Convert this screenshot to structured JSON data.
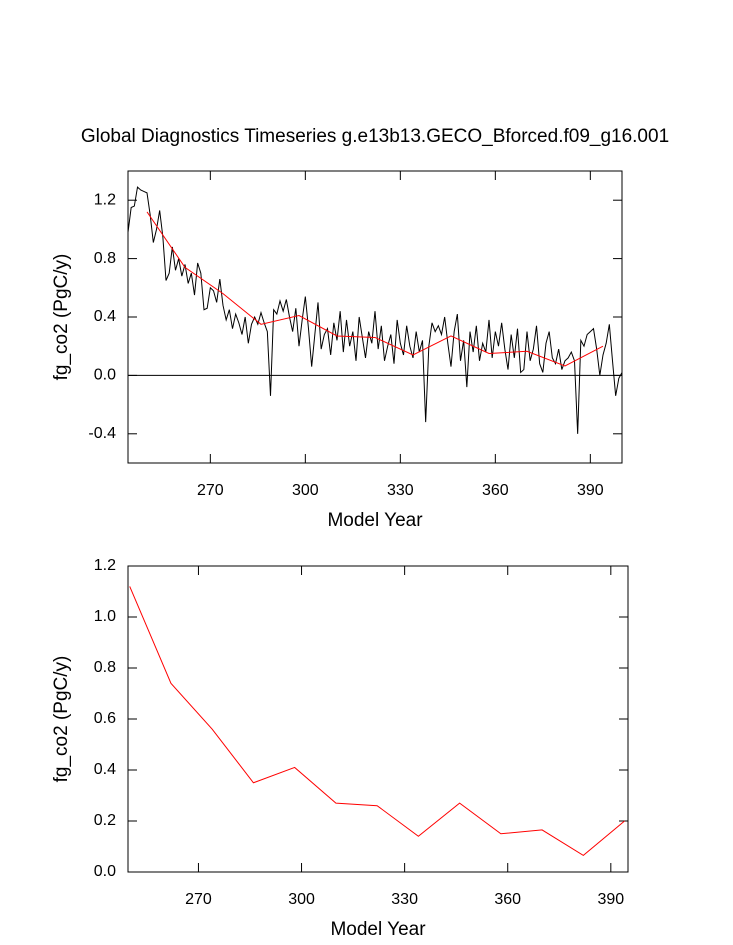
{
  "chart_data": [
    {
      "type": "line",
      "title": "Global Diagnostics Timeseries g.e13b13.GECO_Bforced.f09_g16.001",
      "xlabel": "Model Year",
      "ylabel": "fg_co2 (PgC/y)",
      "xlim": [
        244,
        400
      ],
      "xticks": [
        270,
        300,
        330,
        360,
        390
      ],
      "ylim": [
        -0.6,
        1.4
      ],
      "yticks": [
        -0.4,
        {
          "value": 0,
          "label": "0.0"
        },
        0.4,
        0.8,
        1.2
      ],
      "reference_line": 0,
      "series": [
        {
          "color": "#000000",
          "x": [
            244,
            245,
            246,
            247,
            248,
            249,
            250,
            251,
            252,
            253,
            254,
            255,
            256,
            257,
            258,
            259,
            260,
            261,
            262,
            263,
            264,
            265,
            266,
            267,
            268,
            269,
            270,
            271,
            272,
            273,
            274,
            275,
            276,
            277,
            278,
            279,
            280,
            281,
            282,
            283,
            284,
            285,
            286,
            287,
            288,
            289,
            290,
            291,
            292,
            293,
            294,
            295,
            296,
            297,
            298,
            299,
            300,
            301,
            302,
            303,
            304,
            305,
            306,
            307,
            308,
            309,
            310,
            311,
            312,
            313,
            314,
            315,
            316,
            317,
            318,
            319,
            320,
            321,
            322,
            323,
            324,
            325,
            326,
            327,
            328,
            329,
            330,
            331,
            332,
            333,
            334,
            335,
            336,
            337,
            338,
            339,
            340,
            341,
            342,
            343,
            344,
            345,
            346,
            347,
            348,
            349,
            350,
            351,
            352,
            353,
            354,
            355,
            356,
            357,
            358,
            359,
            360,
            361,
            362,
            363,
            364,
            365,
            366,
            367,
            368,
            369,
            370,
            371,
            372,
            373,
            374,
            375,
            376,
            377,
            378,
            379,
            380,
            381,
            382,
            383,
            384,
            385,
            386,
            387,
            388,
            389,
            390,
            391,
            392,
            393,
            394,
            395,
            396,
            397,
            398,
            399,
            400
          ],
          "values": [
            0.98,
            1.15,
            1.16,
            1.29,
            1.27,
            1.26,
            1.25,
            1.1,
            0.91,
            1.0,
            1.13,
            0.95,
            0.65,
            0.7,
            0.88,
            0.72,
            0.8,
            0.68,
            0.76,
            0.63,
            0.7,
            0.55,
            0.77,
            0.7,
            0.45,
            0.46,
            0.6,
            0.58,
            0.5,
            0.66,
            0.48,
            0.38,
            0.45,
            0.32,
            0.42,
            0.36,
            0.28,
            0.4,
            0.22,
            0.35,
            0.4,
            0.35,
            0.43,
            0.36,
            0.3,
            -0.14,
            0.45,
            0.42,
            0.51,
            0.44,
            0.52,
            0.4,
            0.3,
            0.46,
            0.2,
            0.38,
            0.54,
            0.32,
            0.06,
            0.28,
            0.5,
            0.18,
            0.28,
            0.32,
            0.14,
            0.36,
            0.24,
            0.44,
            0.16,
            0.38,
            0.2,
            0.3,
            0.1,
            0.4,
            0.26,
            0.12,
            0.3,
            0.22,
            0.44,
            0.18,
            0.34,
            0.1,
            0.2,
            0.28,
            0.08,
            0.38,
            0.22,
            0.14,
            0.34,
            0.2,
            0.12,
            0.3,
            0.16,
            0.24,
            -0.32,
            0.2,
            0.36,
            0.3,
            0.34,
            0.28,
            0.4,
            0.22,
            0.06,
            0.3,
            0.42,
            0.1,
            0.24,
            -0.08,
            0.3,
            0.16,
            0.34,
            0.1,
            0.22,
            0.16,
            0.38,
            0.12,
            0.3,
            0.2,
            0.36,
            0.18,
            0.04,
            0.28,
            0.12,
            0.32,
            0.02,
            0.04,
            0.3,
            0.1,
            0.18,
            0.34,
            0.08,
            0.02,
            0.22,
            0.3,
            0.12,
            0.08,
            0.18,
            0.04,
            0.1,
            0.12,
            0.16,
            0.1,
            -0.4,
            0.24,
            0.2,
            0.28,
            0.3,
            0.32,
            0.18,
            0.0,
            0.14,
            0.22,
            0.35,
            0.1,
            -0.14,
            -0.02,
            0.02
          ]
        },
        {
          "color": "#ff0000",
          "x": [
            250,
            262,
            274,
            286,
            298,
            310,
            322,
            334,
            346,
            358,
            370,
            382,
            394
          ],
          "values": [
            1.12,
            0.74,
            0.56,
            0.35,
            0.41,
            0.27,
            0.26,
            0.14,
            0.27,
            0.15,
            0.165,
            0.065,
            0.2
          ]
        }
      ]
    },
    {
      "type": "line",
      "xlabel": "Model Year",
      "ylabel": "fg_co2 (PgC/y)",
      "xlim": [
        249.5,
        395
      ],
      "xticks": [
        270,
        300,
        330,
        360,
        390
      ],
      "ylim": [
        0,
        1.2
      ],
      "yticks": [
        {
          "value": 0,
          "label": "0.0"
        },
        0.2,
        0.4,
        0.6,
        0.8,
        {
          "value": 1,
          "label": "1.0"
        },
        1.2
      ],
      "series": [
        {
          "color": "#ff0000",
          "x": [
            250,
            262,
            274,
            286,
            298,
            310,
            322,
            334,
            346,
            358,
            370,
            382,
            394
          ],
          "values": [
            1.12,
            0.74,
            0.56,
            0.35,
            0.41,
            0.27,
            0.26,
            0.14,
            0.27,
            0.15,
            0.165,
            0.065,
            0.2
          ]
        }
      ]
    }
  ]
}
